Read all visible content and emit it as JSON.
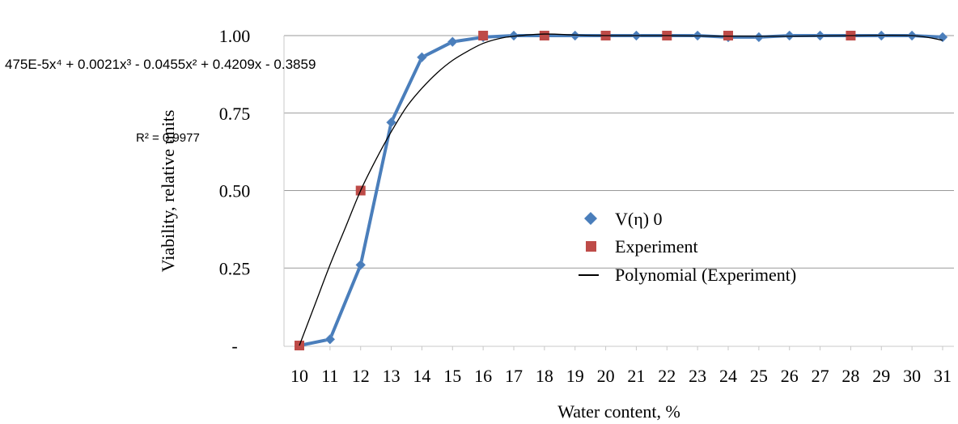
{
  "chart_data": {
    "type": "line",
    "x": [
      10,
      11,
      12,
      13,
      14,
      15,
      16,
      17,
      18,
      19,
      20,
      21,
      22,
      23,
      24,
      25,
      26,
      27,
      28,
      29,
      30,
      31
    ],
    "x_ticks": [
      "10",
      "11",
      "12",
      "13",
      "14",
      "15",
      "16",
      "17",
      "18",
      "19",
      "20",
      "21",
      "22",
      "23",
      "24",
      "25",
      "26",
      "27",
      "28",
      "29",
      "30",
      "31"
    ],
    "y_ticks": [
      {
        "value": 0,
        "label": "-"
      },
      {
        "value": 0.25,
        "label": "0.25"
      },
      {
        "value": 0.5,
        "label": "0.50"
      },
      {
        "value": 0.75,
        "label": "0.75"
      },
      {
        "value": 1.0,
        "label": "1.00"
      }
    ],
    "ylim": [
      0,
      1.0
    ],
    "xlim": [
      10,
      31
    ],
    "xlabel": "Water content, %",
    "ylabel": "Viability, relative units",
    "grid": "horizontal",
    "legend_position": "center-right",
    "series": [
      {
        "name": "V(η) 0",
        "kind": "line-markers",
        "marker": "diamond",
        "color": "#4a7ebb",
        "points": [
          [
            10,
            0.0
          ],
          [
            11,
            0.02
          ],
          [
            12,
            0.26
          ],
          [
            13,
            0.72
          ],
          [
            14,
            0.93
          ],
          [
            15,
            0.98
          ],
          [
            16,
            0.995
          ],
          [
            17,
            1.0
          ],
          [
            18,
            1.0
          ],
          [
            19,
            1.0
          ],
          [
            20,
            1.0
          ],
          [
            21,
            1.0
          ],
          [
            22,
            1.0
          ],
          [
            23,
            1.0
          ],
          [
            24,
            0.995
          ],
          [
            25,
            0.995
          ],
          [
            26,
            1.0
          ],
          [
            27,
            1.0
          ],
          [
            28,
            1.0
          ],
          [
            29,
            1.0
          ],
          [
            30,
            1.0
          ],
          [
            31,
            0.995
          ]
        ]
      },
      {
        "name": "Experiment",
        "kind": "markers",
        "marker": "square",
        "color": "#be4b48",
        "points": [
          [
            10,
            0.0
          ],
          [
            12,
            0.5
          ],
          [
            16,
            1.0
          ],
          [
            18,
            1.0
          ],
          [
            20,
            1.0
          ],
          [
            22,
            1.0
          ],
          [
            24,
            1.0
          ],
          [
            28,
            1.0
          ]
        ]
      },
      {
        "name": "Polynomial (Experiment)",
        "kind": "curve",
        "color": "#000000",
        "points": [
          [
            10,
            0.0
          ],
          [
            10.5,
            0.13
          ],
          [
            11,
            0.26
          ],
          [
            11.5,
            0.38
          ],
          [
            12,
            0.5
          ],
          [
            12.5,
            0.6
          ],
          [
            13,
            0.69
          ],
          [
            13.5,
            0.77
          ],
          [
            14,
            0.83
          ],
          [
            14.5,
            0.88
          ],
          [
            15,
            0.92
          ],
          [
            15.5,
            0.95
          ],
          [
            16,
            0.975
          ],
          [
            16.5,
            0.99
          ],
          [
            17,
            0.998
          ],
          [
            18,
            1.005
          ],
          [
            19,
            1.002
          ],
          [
            20,
            1.0
          ],
          [
            22,
            1.0
          ],
          [
            24,
            0.998
          ],
          [
            26,
            0.998
          ],
          [
            28,
            1.0
          ],
          [
            30,
            1.0
          ],
          [
            31,
            0.985
          ]
        ]
      }
    ],
    "annotations": [
      {
        "id": "equation",
        "text": "475E-5x⁴ + 0.0021x³ - 0.0455x² + 0.4209x - 0.3859"
      },
      {
        "id": "r_squared",
        "text": "R² = 0.9977"
      }
    ]
  }
}
